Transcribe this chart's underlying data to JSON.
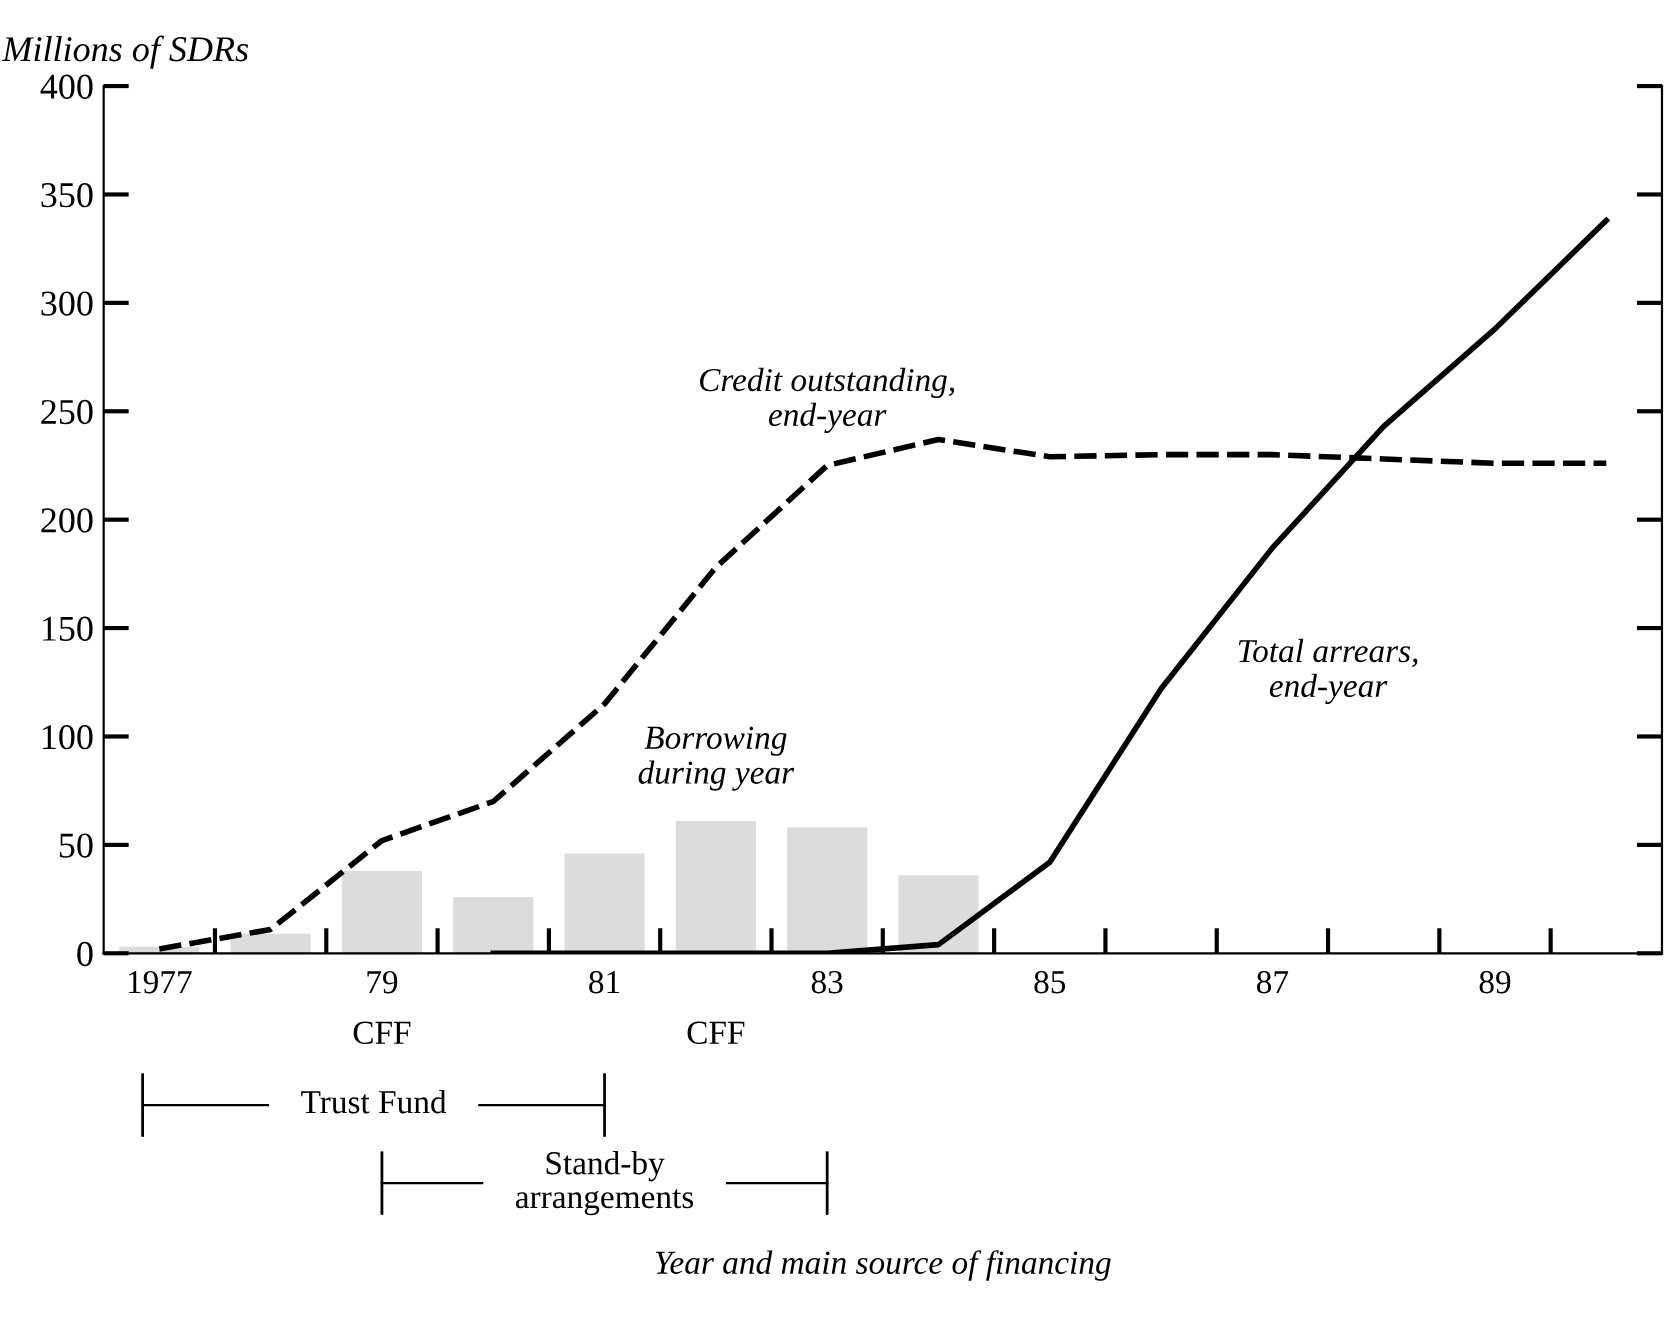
{
  "chart_data": {
    "type": "bar",
    "ylabel": "Millions of SDRs",
    "categories": [
      "1977",
      null,
      "79",
      null,
      "81",
      null,
      "83",
      null,
      "85",
      null,
      "87",
      null,
      "89",
      null
    ],
    "series": [
      {
        "name": "Borrowing\nduring year",
        "color": "#dcdcdc",
        "values": [
          3,
          9,
          38,
          26,
          46,
          61,
          58,
          36,
          null,
          null,
          null,
          null,
          null,
          null
        ]
      },
      {
        "name": "Credit outstanding,\nend-year",
        "type": "line",
        "line_style": "dashed",
        "color": "#000000",
        "values": [
          2,
          11,
          52,
          70,
          115,
          178,
          225,
          237,
          229,
          230,
          230,
          228,
          226,
          226
        ]
      },
      {
        "name": "Total arrears,\nend-year",
        "type": "line",
        "line_style": "solid",
        "color": "#000000",
        "values": [
          null,
          null,
          null,
          0,
          0,
          0,
          0,
          4,
          42,
          122,
          187,
          243,
          288,
          338
        ]
      }
    ],
    "ylim": [
      0,
      400
    ],
    "yticks": [
      0,
      50,
      100,
      150,
      200,
      250,
      300,
      350,
      400
    ],
    "grid": false,
    "legend": false,
    "annotations": [
      "CFF",
      "CFF",
      "Trust Fund",
      "Stand-by\narrangements",
      "Year and main source of financing"
    ]
  }
}
